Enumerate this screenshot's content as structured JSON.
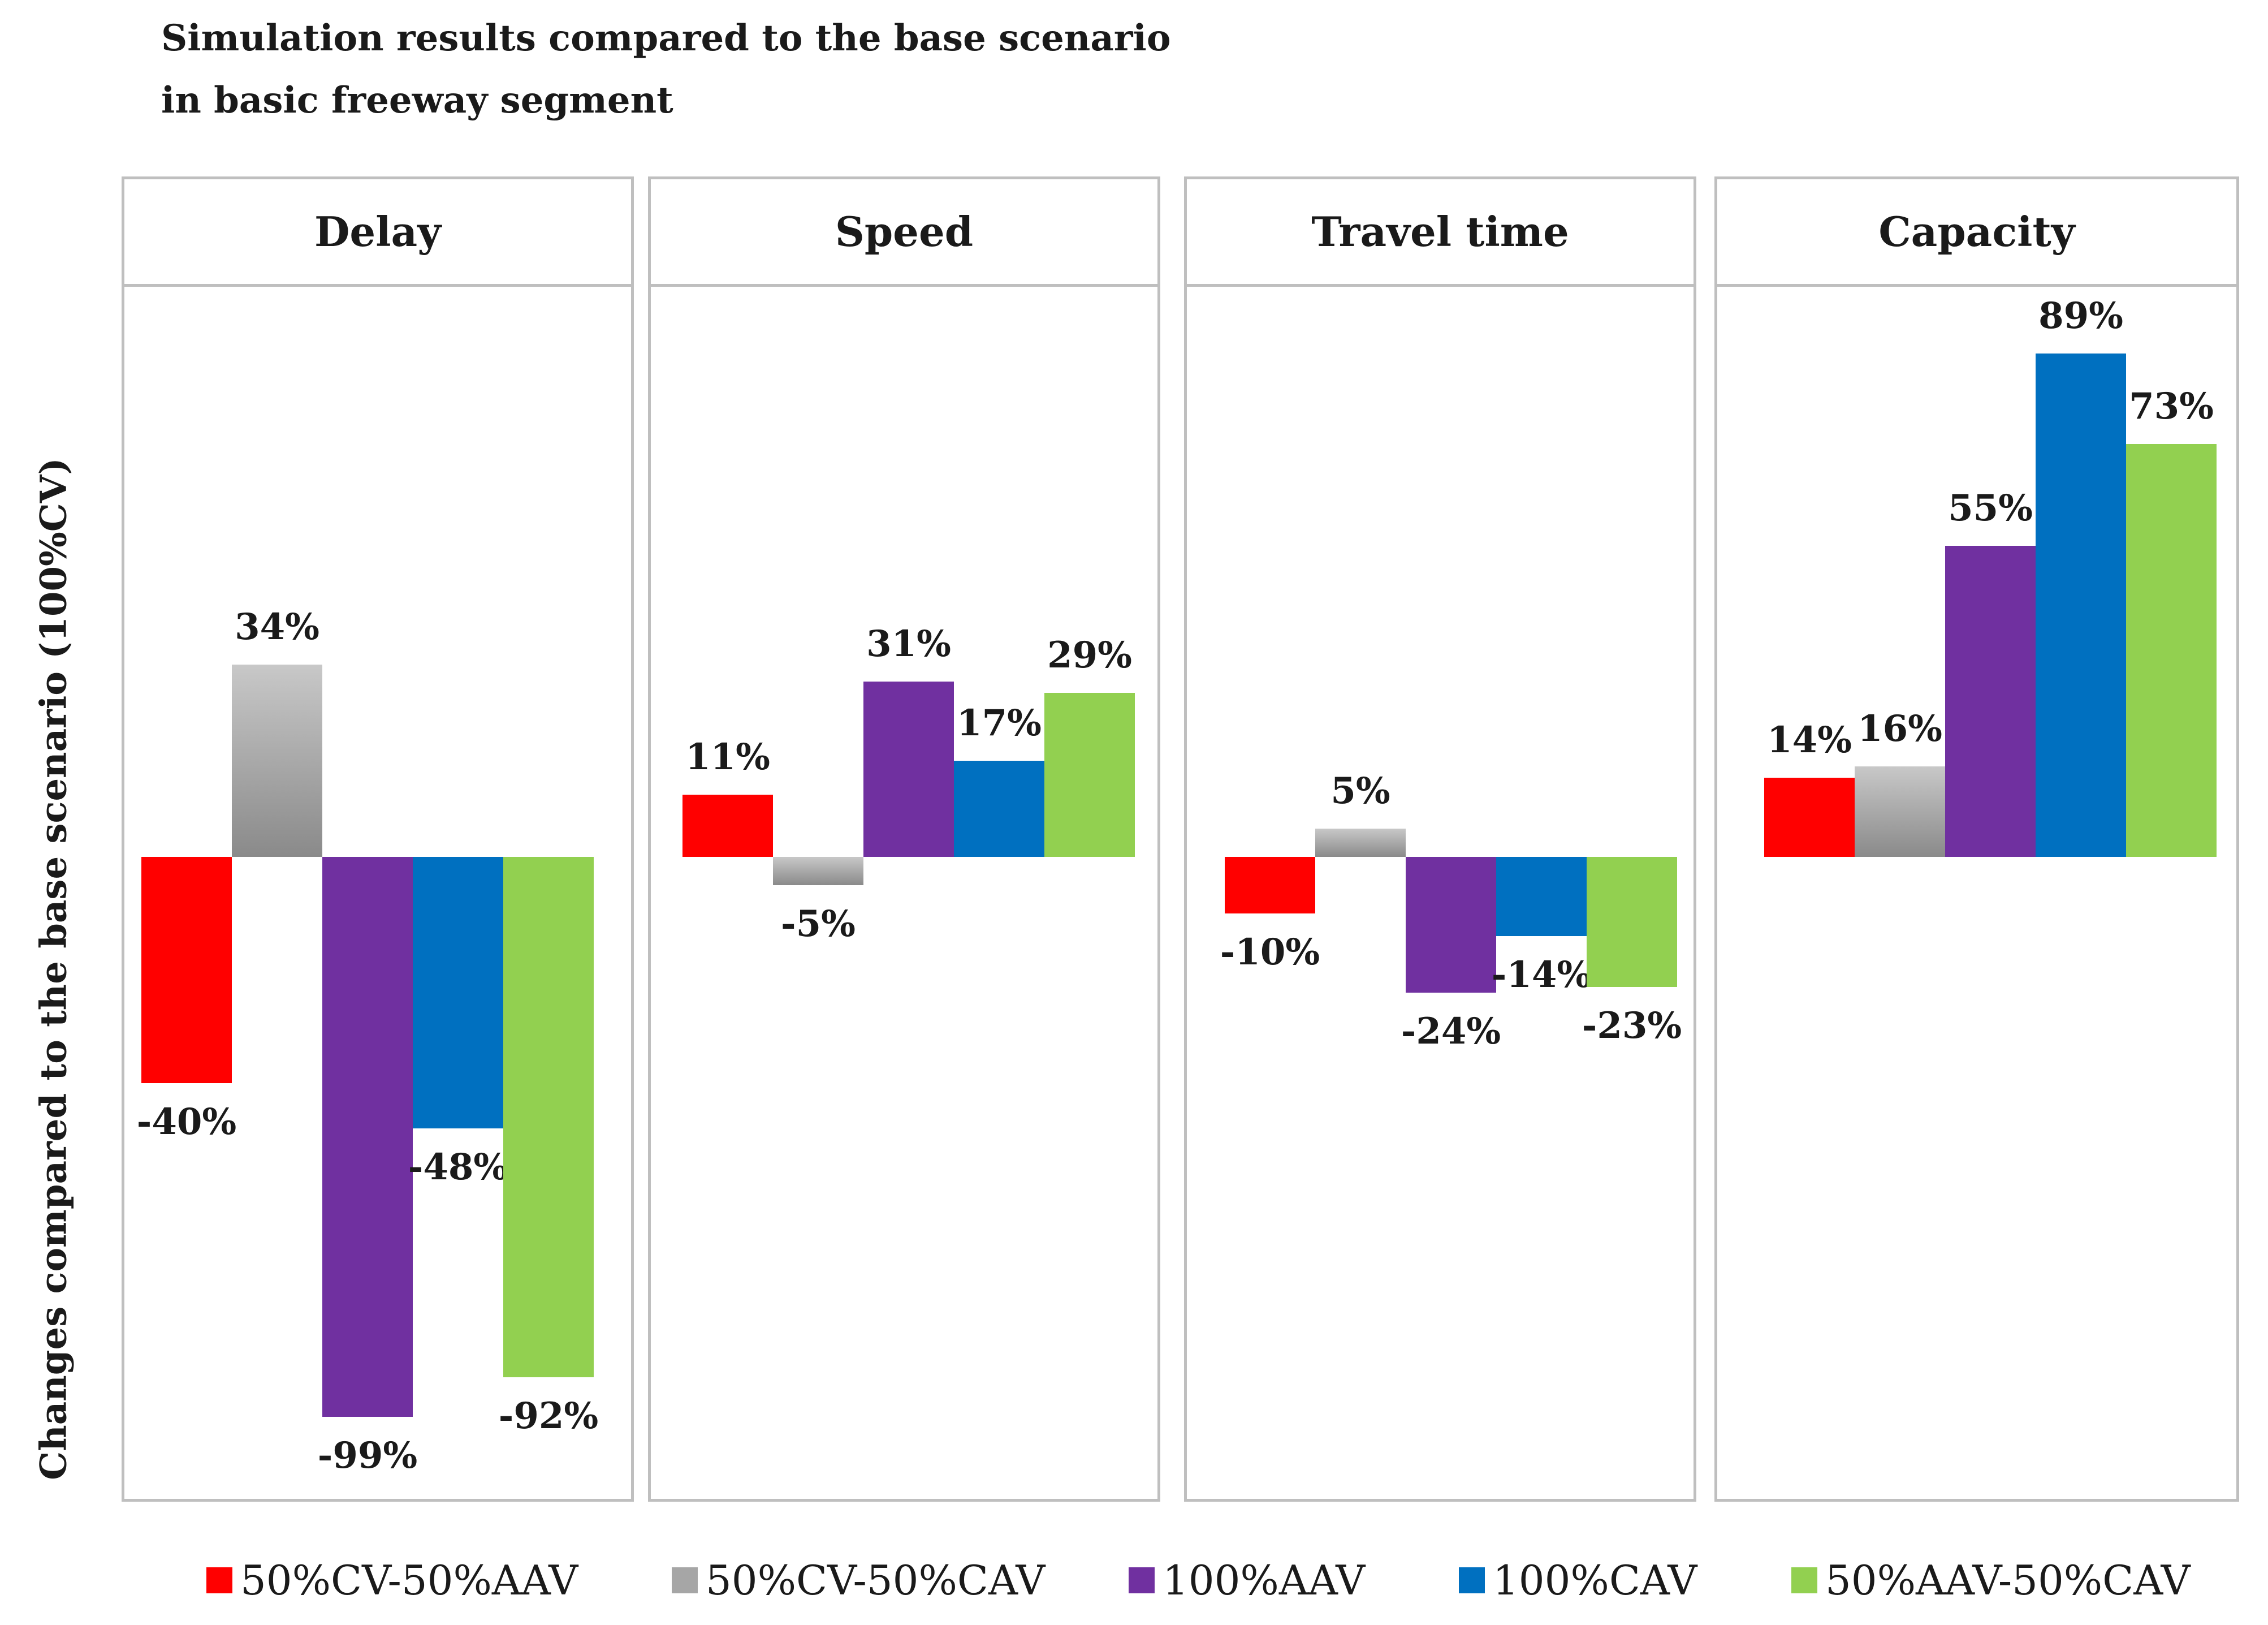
{
  "chart_data": {
    "type": "bar",
    "title": [
      "Simulation results compared to the base scenario",
      "in basic freeway segment"
    ],
    "ylabel": "Changes compared to the base scenario (100%CV)",
    "grid": false,
    "legend_position": "bottom",
    "series": [
      {
        "name": "50%CV-50%AAV",
        "color": "#ff0000"
      },
      {
        "name": "50%CV-50%CAV",
        "color": "#a6a6a6"
      },
      {
        "name": "100%AAV",
        "color": "#7030a0"
      },
      {
        "name": "100%CAV",
        "color": "#0070c0"
      },
      {
        "name": "50%AAV-50%CAV",
        "color": "#92d050"
      }
    ],
    "panels": [
      {
        "title": "Delay",
        "values": [
          -40,
          34,
          -99,
          -48,
          -92
        ],
        "labels": [
          "-40%",
          "34%",
          "-99%",
          "-48%",
          "-92%"
        ]
      },
      {
        "title": "Speed",
        "values": [
          11,
          -5,
          31,
          17,
          29
        ],
        "labels": [
          "11%",
          "-5%",
          "31%",
          "17%",
          "29%"
        ]
      },
      {
        "title": "Travel time",
        "values": [
          -10,
          5,
          -24,
          -14,
          -23
        ],
        "labels": [
          "-10%",
          "5%",
          "-24%",
          "-14%",
          "-23%"
        ]
      },
      {
        "title": "Capacity",
        "values": [
          14,
          16,
          55,
          89,
          73
        ],
        "labels": [
          "14%",
          "16%",
          "55%",
          "89%",
          "73%"
        ]
      }
    ]
  }
}
